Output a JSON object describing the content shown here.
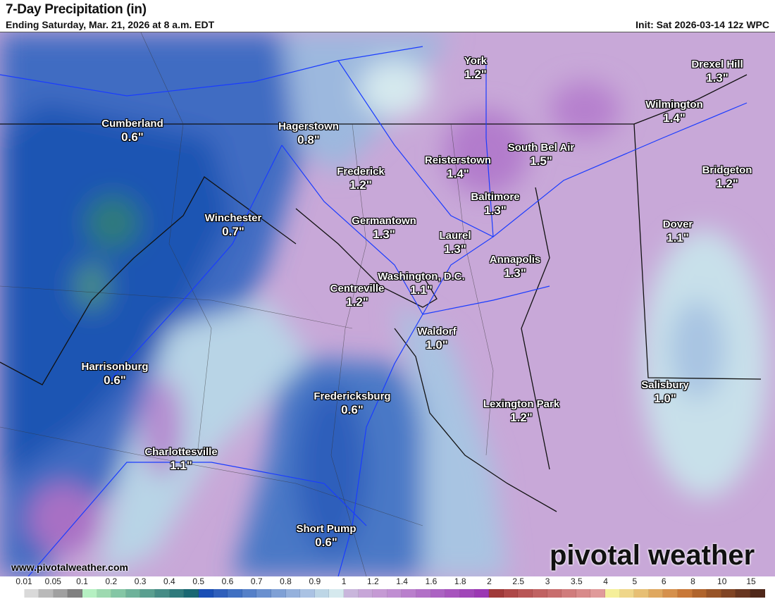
{
  "header": {
    "title": "7-Day Precipitation (in)",
    "subtitle": "Ending Saturday, Mar. 21, 2026 at 8 a.m. EDT",
    "init": "Init: Sat 2026-03-14 12z WPC"
  },
  "cities": [
    {
      "name": "York",
      "value": "1.2\""
    },
    {
      "name": "Drexel Hill",
      "value": "1.3\""
    },
    {
      "name": "Wilmington",
      "value": "1.4\""
    },
    {
      "name": "Cumberland",
      "value": "0.6\""
    },
    {
      "name": "Hagerstown",
      "value": "0.8\""
    },
    {
      "name": "South Bel Air",
      "value": "1.5\""
    },
    {
      "name": "Reisterstown",
      "value": "1.4\""
    },
    {
      "name": "Frederick",
      "value": "1.2\""
    },
    {
      "name": "Bridgeton",
      "value": "1.2\""
    },
    {
      "name": "Baltimore",
      "value": "1.3\""
    },
    {
      "name": "Winchester",
      "value": "0.7\""
    },
    {
      "name": "Germantown",
      "value": "1.3\""
    },
    {
      "name": "Dover",
      "value": "1.1\""
    },
    {
      "name": "Laurel",
      "value": "1.3\""
    },
    {
      "name": "Annapolis",
      "value": "1.3\""
    },
    {
      "name": "Washington, D.C.",
      "value": "1.1\""
    },
    {
      "name": "Centreville",
      "value": "1.2\""
    },
    {
      "name": "Waldorf",
      "value": "1.0\""
    },
    {
      "name": "Harrisonburg",
      "value": "0.6\""
    },
    {
      "name": "Salisbury",
      "value": "1.0\""
    },
    {
      "name": "Fredericksburg",
      "value": "0.6\""
    },
    {
      "name": "Lexington Park",
      "value": "1.2\""
    },
    {
      "name": "Charlottesville",
      "value": "1.1\""
    },
    {
      "name": "Short Pump",
      "value": "0.6\""
    }
  ],
  "footer": {
    "website": "www.pivotalweather.com",
    "brand": "pivotal weather"
  },
  "legend": {
    "labels": [
      "0.01",
      "0.05",
      "0.1",
      "0.2",
      "0.3",
      "0.4",
      "0.5",
      "0.6",
      "0.7",
      "0.8",
      "0.9",
      "1",
      "1.2",
      "1.4",
      "1.6",
      "1.8",
      "2",
      "2.5",
      "3",
      "3.5",
      "4",
      "5",
      "6",
      "8",
      "10",
      "15"
    ],
    "colors": [
      "#ffffff",
      "#d9d9d9",
      "#b9b9b9",
      "#a0a0a0",
      "#808080",
      "#b5f0c2",
      "#9dd9b0",
      "#84c6a5",
      "#6eb29a",
      "#5a9f90",
      "#468c86",
      "#2f7a7c",
      "#196772",
      "#1a4fb5",
      "#2f5fbb",
      "#4070c2",
      "#5580c8",
      "#6a90cf",
      "#7fa0d5",
      "#95b1dc",
      "#aac2e3",
      "#bdd6e6",
      "#d5e9ee",
      "#c9b6dc",
      "#c7a6d8",
      "#c59ad4",
      "#c08ed2",
      "#b97fcc",
      "#b270c7",
      "#ab62c2",
      "#a754bd",
      "#a046b8",
      "#9b38b3",
      "#a03a3a",
      "#ae4848",
      "#b85656",
      "#c06262",
      "#c86e6e",
      "#d07c7c",
      "#d88a8a",
      "#e09a9a",
      "#f5ef9a",
      "#efd68a",
      "#e7bf74",
      "#dfa860",
      "#d5904c",
      "#c87838",
      "#b0642c",
      "#985428",
      "#804424",
      "#683620",
      "#50281a"
    ]
  }
}
